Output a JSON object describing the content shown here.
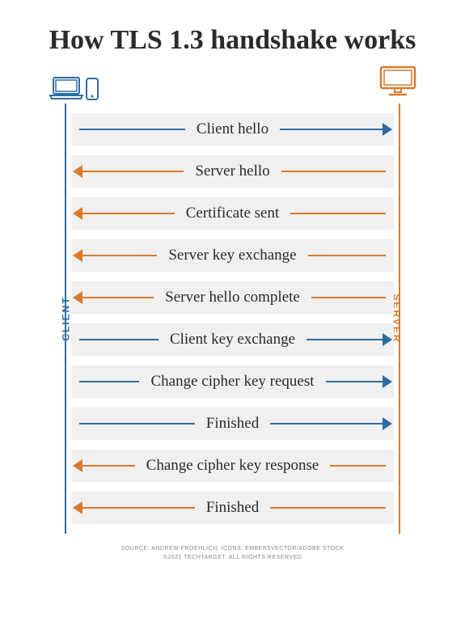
{
  "title": "How TLS 1.3 handshake works",
  "title_fontsize": 34,
  "colors": {
    "client": "#2e6ca4",
    "server": "#d97a2e",
    "text": "#2a2a2a",
    "row_bg": "#f0f0f0",
    "background": "#ffffff"
  },
  "labels": {
    "client": "CLIENT",
    "server": "SERVER"
  },
  "steps": [
    {
      "label": "Client hello",
      "direction": "right",
      "color": "client"
    },
    {
      "label": "Server hello",
      "direction": "left",
      "color": "server"
    },
    {
      "label": "Certificate sent",
      "direction": "left",
      "color": "server"
    },
    {
      "label": "Server key exchange",
      "direction": "left",
      "color": "server"
    },
    {
      "label": "Server hello complete",
      "direction": "left",
      "color": "server"
    },
    {
      "label": "Client key exchange",
      "direction": "right",
      "color": "client"
    },
    {
      "label": "Change cipher key request",
      "direction": "right",
      "color": "client"
    },
    {
      "label": "Finished",
      "direction": "right",
      "color": "client"
    },
    {
      "label": "Change cipher key response",
      "direction": "left",
      "color": "server"
    },
    {
      "label": "Finished",
      "direction": "left",
      "color": "server"
    }
  ],
  "arrow": {
    "line_width": 2,
    "head_size": 8,
    "margin": 18
  },
  "credits": {
    "line1": "SOURCE: ANDREW FROEHLICH; ICONS: EMBER5VECTOR/ADOBE STOCK",
    "line2": "©2021 TECHTARGET. ALL RIGHTS RESERVED"
  }
}
